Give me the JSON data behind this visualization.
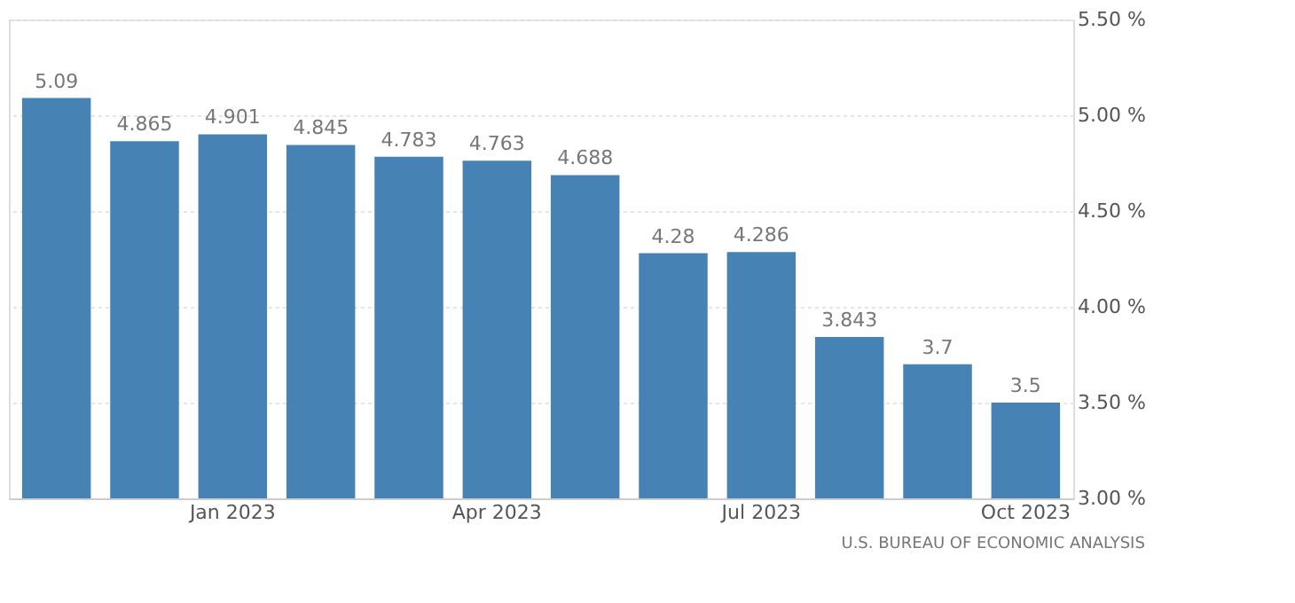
{
  "chart_data": {
    "type": "bar",
    "categories": [
      null,
      null,
      "Jan 2023",
      null,
      null,
      "Apr 2023",
      null,
      null,
      "Jul 2023",
      null,
      null,
      "Oct 2023"
    ],
    "values": [
      5.09,
      4.865,
      4.901,
      4.845,
      4.783,
      4.763,
      4.688,
      4.28,
      4.286,
      3.843,
      3.7,
      3.5
    ],
    "color": "#4682b4",
    "ylim": [
      3,
      5.5
    ],
    "yticks": [
      {
        "value": 3,
        "label": "3.00 %"
      },
      {
        "value": 3.5,
        "label": "3.50 %"
      },
      {
        "value": 4,
        "label": "4.00 %"
      },
      {
        "value": 4.5,
        "label": "4.50 %"
      },
      {
        "value": 5,
        "label": "5.00 %"
      },
      {
        "value": 5.5,
        "label": "5.50 %"
      }
    ],
    "grid": "y",
    "data_labels": true,
    "annotations": [
      "U.S. BUREAU OF ECONOMIC ANALYSIS"
    ]
  }
}
